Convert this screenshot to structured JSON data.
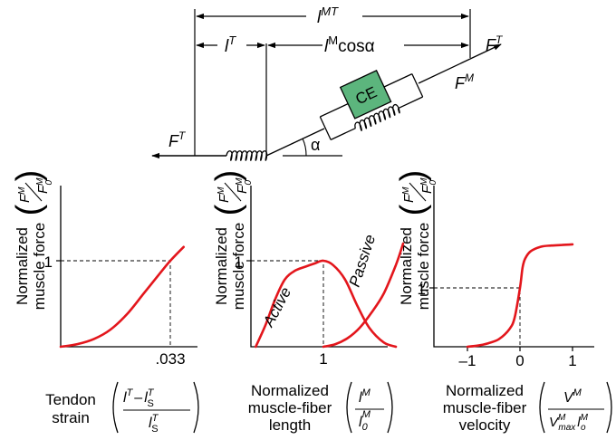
{
  "colors": {
    "curve": "#e3161c",
    "contractile_element": "#5cb57d",
    "ink": "#000000"
  },
  "schematic": {
    "lmt_main": "l",
    "lmt_sup": "MT",
    "lt_main": "l",
    "lt_sup": "T",
    "lm_main": "l",
    "lm_sup": "M",
    "lm_cos": "cosα",
    "ft_main": "F",
    "ft_sup": "T",
    "fm_main": "F",
    "fm_sup": "M",
    "ce": "CE",
    "alpha": "α"
  },
  "ylabel": {
    "line1": "Normalized",
    "line2": "muscle force",
    "frac_num_main": "F",
    "frac_num_sup": "M",
    "frac_den_main": "F",
    "frac_den_sup": "M",
    "frac_den_sub": "0"
  },
  "panels": {
    "tendon": {
      "tick_1": "1",
      "tick_x": ".033",
      "label_line1": "Tendon",
      "label_line2": "strain",
      "num_a": "l",
      "num_a_sup": "T",
      "num_minus": "–",
      "num_b": "l",
      "num_b_sup": "T",
      "num_b_sub": "S",
      "den": "l",
      "den_sup": "T",
      "den_sub": "S"
    },
    "length": {
      "tick_1": "1",
      "tick_x": "1",
      "active": "Active",
      "passive": "Passive",
      "label_line1": "Normalized",
      "label_line2": "muscle-fiber",
      "label_line3": "length",
      "num": "l",
      "num_sup": "M",
      "den": "l",
      "den_sub": "0",
      "den_sup": "M"
    },
    "velocity": {
      "tick_1": "1",
      "tick_neg1": "–1",
      "tick_0": "0",
      "tick_pos1": "1",
      "label_line1": "Normalized",
      "label_line2": "muscle-fiber",
      "label_line3": "velocity",
      "num": "V",
      "num_sup": "M",
      "den_v": "V",
      "den_v_sup": "M",
      "den_v_sub": "max",
      "den_l": "l",
      "den_l_sup": "M",
      "den_l_sub": "o"
    }
  },
  "chart_data": [
    {
      "type": "line",
      "name": "tendon",
      "x_ticks": [
        ".033"
      ],
      "y_ticks": [
        "1"
      ],
      "series": [
        {
          "x": [
            0,
            0.005,
            0.01,
            0.015,
            0.02,
            0.025,
            0.03,
            0.033,
            0.037
          ],
          "y": [
            0,
            0.03,
            0.09,
            0.2,
            0.38,
            0.62,
            0.86,
            1.0,
            1.16
          ]
        }
      ],
      "reference": {
        "x": 0.033,
        "y": 1.0
      }
    },
    {
      "type": "line",
      "name": "muscle-fiber-length",
      "x_ticks": [
        "1"
      ],
      "y_ticks": [
        "1"
      ],
      "series": [
        {
          "name": "Active",
          "x": [
            0.44,
            0.52,
            0.6,
            0.68,
            0.76,
            0.85,
            0.93,
            1.0,
            1.08,
            1.18,
            1.28,
            1.38,
            1.5,
            1.6
          ],
          "y": [
            0.0,
            0.25,
            0.55,
            0.78,
            0.88,
            0.93,
            0.97,
            1.0,
            0.95,
            0.78,
            0.48,
            0.22,
            0.05,
            0.0
          ]
        },
        {
          "name": "Passive",
          "x": [
            1.0,
            1.1,
            1.2,
            1.3,
            1.4,
            1.5,
            1.6,
            1.66
          ],
          "y": [
            0.0,
            0.03,
            0.1,
            0.22,
            0.4,
            0.62,
            0.95,
            1.2
          ]
        }
      ],
      "reference": {
        "x": 1.0,
        "y": 1.0
      }
    },
    {
      "type": "line",
      "name": "muscle-fiber-velocity",
      "x_ticks": [
        "–1",
        "0",
        "1"
      ],
      "y_ticks": [
        "1"
      ],
      "series": [
        {
          "x": [
            -1.0,
            -0.8,
            -0.6,
            -0.4,
            -0.2,
            -0.1,
            0.0,
            0.05,
            0.1,
            0.2,
            0.4,
            0.6,
            0.8,
            1.0
          ],
          "y": [
            0.0,
            0.02,
            0.06,
            0.13,
            0.3,
            0.5,
            1.0,
            1.35,
            1.5,
            1.62,
            1.7,
            1.72,
            1.73,
            1.74
          ]
        }
      ],
      "reference": {
        "x": 0.0,
        "y": 1.0
      }
    }
  ]
}
